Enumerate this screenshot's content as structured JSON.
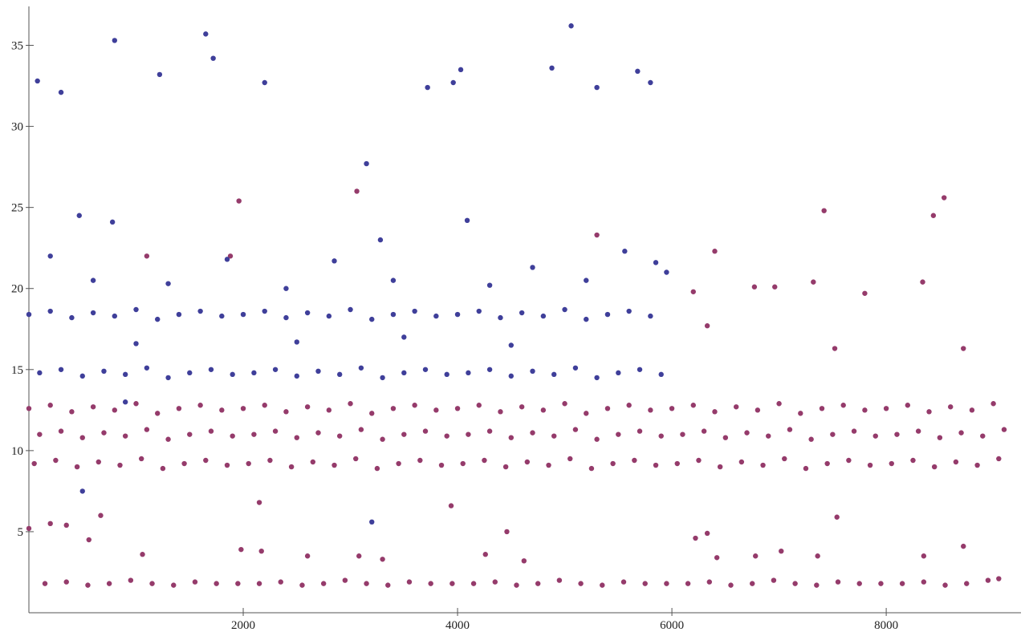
{
  "chart_data": {
    "type": "scatter",
    "xlim": [
      0,
      9250
    ],
    "ylim": [
      0,
      37.4
    ],
    "xticks": [
      2000,
      4000,
      6000,
      8000
    ],
    "yticks": [
      5,
      10,
      15,
      20,
      25,
      30,
      35
    ],
    "series": [
      {
        "color": "#953b6b",
        "x": [
          0,
          200,
          400,
          600,
          800,
          1000,
          1200,
          1400,
          1600,
          1800,
          2000,
          2200,
          2400,
          2600,
          2800,
          3000,
          3200,
          3400,
          3600,
          3800,
          4000,
          4200,
          4400,
          4600,
          4800,
          5000,
          5200,
          5400,
          5600,
          5800,
          6000,
          6200,
          6400,
          6600,
          6800,
          7000,
          7200,
          7400,
          7600,
          7800,
          8000,
          8200,
          8400,
          8600,
          8800,
          9000
        ],
        "values": [
          12.6,
          12.8,
          12.4,
          12.7,
          12.5,
          12.9,
          12.3,
          12.6,
          12.8,
          12.5,
          12.6,
          12.8,
          12.4,
          12.7,
          12.5,
          12.9,
          12.3,
          12.6,
          12.8,
          12.5,
          12.6,
          12.8,
          12.4,
          12.7,
          12.5,
          12.9,
          12.3,
          12.6,
          12.8,
          12.5,
          12.6,
          12.8,
          12.4,
          12.7,
          12.5,
          12.9,
          12.3,
          12.6,
          12.8,
          12.5,
          12.6,
          12.8,
          12.4,
          12.7,
          12.5,
          12.9
        ]
      },
      {
        "color": "#953b6b",
        "x": [
          100,
          300,
          500,
          700,
          900,
          1100,
          1300,
          1500,
          1700,
          1900,
          2100,
          2300,
          2500,
          2700,
          2900,
          3100,
          3300,
          3500,
          3700,
          3900,
          4100,
          4300,
          4500,
          4700,
          4900,
          5100,
          5300,
          5500,
          5700,
          5900,
          6100,
          6300,
          6500,
          6700,
          6900,
          7100,
          7300,
          7500,
          7700,
          7900,
          8100,
          8300,
          8500,
          8700,
          8900,
          9100
        ],
        "values": [
          11.0,
          11.2,
          10.8,
          11.1,
          10.9,
          11.3,
          10.7,
          11.0,
          11.2,
          10.9,
          11.0,
          11.2,
          10.8,
          11.1,
          10.9,
          11.3,
          10.7,
          11.0,
          11.2,
          10.9,
          11.0,
          11.2,
          10.8,
          11.1,
          10.9,
          11.3,
          10.7,
          11.0,
          11.2,
          10.9,
          11.0,
          11.2,
          10.8,
          11.1,
          10.9,
          11.3,
          10.7,
          11.0,
          11.2,
          10.9,
          11.0,
          11.2,
          10.8,
          11.1,
          10.9,
          11.3
        ]
      },
      {
        "color": "#953b6b",
        "x": [
          50,
          250,
          450,
          650,
          850,
          1050,
          1250,
          1450,
          1650,
          1850,
          2050,
          2250,
          2450,
          2650,
          2850,
          3050,
          3250,
          3450,
          3650,
          3850,
          4050,
          4250,
          4450,
          4650,
          4850,
          5050,
          5250,
          5450,
          5650,
          5850,
          6050,
          6250,
          6450,
          6650,
          6850,
          7050,
          7250,
          7450,
          7650,
          7850,
          8050,
          8250,
          8450,
          8650,
          8850,
          9050
        ],
        "values": [
          9.2,
          9.4,
          9.0,
          9.3,
          9.1,
          9.5,
          8.9,
          9.2,
          9.4,
          9.1,
          9.2,
          9.4,
          9.0,
          9.3,
          9.1,
          9.5,
          8.9,
          9.2,
          9.4,
          9.1,
          9.2,
          9.4,
          9.0,
          9.3,
          9.1,
          9.5,
          8.9,
          9.2,
          9.4,
          9.1,
          9.2,
          9.4,
          9.0,
          9.3,
          9.1,
          9.5,
          8.9,
          9.2,
          9.4,
          9.1,
          9.2,
          9.4,
          9.0,
          9.3,
          9.1,
          9.5
        ]
      },
      {
        "color": "#953b6b",
        "x": [
          150,
          350,
          550,
          750,
          950,
          1150,
          1350,
          1550,
          1750,
          1950,
          2150,
          2350,
          2550,
          2750,
          2950,
          3150,
          3350,
          3550,
          3750,
          3950,
          4150,
          4350,
          4550,
          4750,
          4950,
          5150,
          5350,
          5550,
          5750,
          5950,
          6150,
          6350,
          6550,
          6750,
          6950,
          7150,
          7350,
          7550,
          7750,
          7950,
          8150,
          8350,
          8550,
          8750,
          8950,
          9050
        ],
        "values": [
          1.8,
          1.9,
          1.7,
          1.8,
          2.0,
          1.8,
          1.7,
          1.9,
          1.8,
          1.8,
          1.8,
          1.9,
          1.7,
          1.8,
          2.0,
          1.8,
          1.7,
          1.9,
          1.8,
          1.8,
          1.8,
          1.9,
          1.7,
          1.8,
          2.0,
          1.8,
          1.7,
          1.9,
          1.8,
          1.8,
          1.8,
          1.9,
          1.7,
          1.8,
          2.0,
          1.8,
          1.7,
          1.9,
          1.8,
          1.8,
          1.8,
          1.9,
          1.7,
          1.8,
          2.0,
          2.1
        ]
      },
      {
        "color": "#953b6b",
        "x": [
          1960,
          3060,
          7420,
          8440,
          8540,
          6400,
          1100,
          1880,
          5300,
          6200,
          6770,
          6960,
          7320,
          8340,
          7800,
          6330,
          7520,
          8720,
          0,
          200,
          350,
          560,
          1060,
          1980,
          2170,
          2600,
          3080,
          3300,
          4260,
          4460,
          4620,
          6220,
          6330,
          6420,
          6780,
          7020,
          7360,
          7540,
          8350,
          8720,
          670,
          2150,
          3940
        ],
        "values": [
          25.4,
          26.0,
          24.8,
          24.5,
          25.6,
          22.3,
          22.0,
          22.0,
          23.3,
          19.8,
          20.1,
          20.1,
          20.4,
          20.4,
          19.7,
          17.7,
          16.3,
          16.3,
          5.2,
          5.5,
          5.4,
          4.5,
          3.6,
          3.9,
          3.8,
          3.5,
          3.5,
          3.3,
          3.6,
          5.0,
          3.2,
          4.6,
          4.9,
          3.4,
          3.5,
          3.8,
          3.5,
          5.9,
          3.5,
          4.1,
          6.0,
          6.8,
          6.6
        ]
      },
      {
        "color": "#3f3f9a",
        "x": [
          0,
          200,
          400,
          600,
          800,
          1000,
          1200,
          1400,
          1600,
          1800,
          2000,
          2200,
          2400,
          2600,
          2800,
          3000,
          3200,
          3400,
          3600,
          3800,
          4000,
          4200,
          4400,
          4600,
          4800,
          5000,
          5200,
          5400,
          5600,
          5800
        ],
        "values": [
          18.4,
          18.6,
          18.2,
          18.5,
          18.3,
          18.7,
          18.1,
          18.4,
          18.6,
          18.3,
          18.4,
          18.6,
          18.2,
          18.5,
          18.3,
          18.7,
          18.1,
          18.4,
          18.6,
          18.3,
          18.4,
          18.6,
          18.2,
          18.5,
          18.3,
          18.7,
          18.1,
          18.4,
          18.6,
          18.3
        ]
      },
      {
        "color": "#3f3f9a",
        "x": [
          100,
          300,
          500,
          700,
          900,
          1100,
          1300,
          1500,
          1700,
          1900,
          2100,
          2300,
          2500,
          2700,
          2900,
          3100,
          3300,
          3500,
          3700,
          3900,
          4100,
          4300,
          4500,
          4700,
          4900,
          5100,
          5300,
          5500,
          5700,
          5900
        ],
        "values": [
          14.8,
          15.0,
          14.6,
          14.9,
          14.7,
          15.1,
          14.5,
          14.8,
          15.0,
          14.7,
          14.8,
          15.0,
          14.6,
          14.9,
          14.7,
          15.1,
          14.5,
          14.8,
          15.0,
          14.7,
          14.8,
          15.0,
          14.6,
          14.9,
          14.7,
          15.1,
          14.5,
          14.8,
          15.0,
          14.7
        ]
      },
      {
        "color": "#3f3f9a",
        "x": [
          80,
          300,
          470,
          780,
          800,
          1220,
          1650,
          1720,
          2200,
          3150,
          3280,
          3720,
          3960,
          4030,
          4090,
          4880,
          5060,
          5300,
          5680,
          5800,
          5560,
          200,
          1850,
          2850,
          4700,
          5850,
          5950,
          1000,
          2500,
          3500,
          4500,
          500,
          3200,
          600,
          1300,
          2400,
          3400,
          4300,
          5200,
          900
        ],
        "values": [
          32.8,
          32.1,
          24.5,
          24.1,
          35.3,
          33.2,
          35.7,
          34.2,
          32.7,
          27.7,
          23.0,
          32.4,
          32.7,
          33.5,
          24.2,
          33.6,
          36.2,
          32.4,
          33.4,
          32.7,
          22.3,
          22.0,
          21.8,
          21.7,
          21.3,
          21.6,
          21.0,
          16.6,
          16.7,
          17.0,
          16.5,
          7.5,
          5.6,
          20.5,
          20.3,
          20.0,
          20.5,
          20.2,
          20.5,
          13.0
        ]
      }
    ]
  }
}
